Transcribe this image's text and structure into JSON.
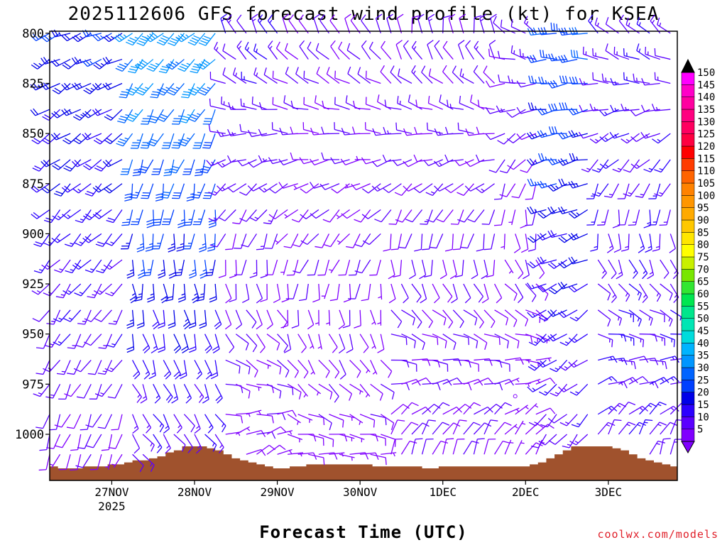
{
  "chart_data": {
    "type": "wind-barb-time-height",
    "title": "2025112606 GFS forecast wind profile (kt) for KSEA",
    "xlabel": "Forecast Time (UTC)",
    "credit": "coolwx.com/models",
    "x_unit": "hours since 2025-11-26 06 UTC",
    "xlim": [
      0,
      182
    ],
    "x_ticks": [
      {
        "hour": 18,
        "label": "27NOV",
        "sublabel": "2025"
      },
      {
        "hour": 42,
        "label": "28NOV",
        "sublabel": ""
      },
      {
        "hour": 66,
        "label": "29NOV",
        "sublabel": ""
      },
      {
        "hour": 90,
        "label": "30NOV",
        "sublabel": ""
      },
      {
        "hour": 114,
        "label": "1DEC",
        "sublabel": ""
      },
      {
        "hour": 138,
        "label": "2DEC",
        "sublabel": ""
      },
      {
        "hour": 162,
        "label": "3DEC",
        "sublabel": ""
      }
    ],
    "y_unit": "hPa",
    "ylim": [
      1023,
      799
    ],
    "y_ticks": [
      800,
      825,
      850,
      875,
      900,
      925,
      950,
      975,
      1000
    ],
    "levels_hPa": [
      1010,
      1000,
      990,
      975,
      963,
      950,
      938,
      925,
      913,
      900,
      888,
      875,
      863,
      850,
      838,
      825,
      813,
      800
    ],
    "time_step_h": 3,
    "time_start_h": 0,
    "wind_segments": [
      {
        "start_h": 0,
        "end_h": 21,
        "dir_top": 245,
        "dir_bottom": 200,
        "spd_top": 24,
        "spd_bottom": 9,
        "colorbar_note": "SW flow, blues aloft"
      },
      {
        "start_h": 24,
        "end_h": 48,
        "dir_top": 225,
        "dir_bottom": 140,
        "spd_top": 38,
        "spd_bottom": 12
      },
      {
        "start_h": 51,
        "end_h": 66,
        "dir_top": 330,
        "dir_bottom": 60,
        "spd_top": 14,
        "spd_bottom": 8
      },
      {
        "start_h": 69,
        "end_h": 96,
        "dir_top": 330,
        "dir_bottom": 90,
        "spd_top": 10,
        "spd_bottom": 8
      },
      {
        "start_h": 99,
        "end_h": 129,
        "dir_top": 350,
        "dir_bottom": 20,
        "spd_top": 11,
        "spd_bottom": 10
      },
      {
        "start_h": 132,
        "end_h": 141,
        "dir_top": 300,
        "dir_bottom": 30,
        "spd_top": 12,
        "spd_bottom": 6
      },
      {
        "start_h": 144,
        "end_h": 156,
        "dir_top": 270,
        "dir_bottom": 220,
        "spd_top": 30,
        "spd_bottom": 12
      },
      {
        "start_h": 159,
        "end_h": 182,
        "dir_top": 310,
        "dir_bottom": 20,
        "spd_top": 14,
        "spd_bottom": 14
      }
    ],
    "calm_point": {
      "hour": 135,
      "level_hPa": 981
    },
    "terrain": {
      "color": "#a0522d",
      "top_hPa": [
        1016,
        1017,
        1017,
        1017,
        1016,
        1016,
        1016,
        1015,
        1015,
        1014,
        1013,
        1013,
        1012,
        1011,
        1009,
        1008,
        1006,
        1006,
        1006,
        1007,
        1008,
        1010,
        1012,
        1013,
        1014,
        1015,
        1016,
        1017,
        1017,
        1016,
        1016,
        1015,
        1015,
        1015,
        1015,
        1015,
        1015,
        1015,
        1015,
        1016,
        1016,
        1016,
        1016,
        1016,
        1016,
        1017,
        1017,
        1016,
        1016,
        1016,
        1016,
        1016,
        1016,
        1016,
        1016,
        1016,
        1016,
        1016,
        1015,
        1014,
        1012,
        1010,
        1008,
        1006,
        1006,
        1006,
        1006,
        1006,
        1007,
        1008,
        1010,
        1012,
        1013,
        1014,
        1015,
        1016
      ]
    },
    "colorbar": {
      "labels": [
        "5",
        "10",
        "15",
        "20",
        "25",
        "30",
        "35",
        "40",
        "45",
        "50",
        "55",
        "60",
        "65",
        "70",
        "75",
        "80",
        "85",
        "90",
        "95",
        "100",
        "105",
        "110",
        "115",
        "120",
        "125",
        "130",
        "135",
        "140",
        "145",
        "150"
      ],
      "colors": [
        "#8000ff",
        "#5a00ff",
        "#2b00ff",
        "#0000e8",
        "#0040ff",
        "#0064ff",
        "#0096ff",
        "#00b4ff",
        "#00dcdc",
        "#00e6b4",
        "#00e68c",
        "#00e650",
        "#32e632",
        "#78e600",
        "#c8f000",
        "#ffff00",
        "#ffe600",
        "#ffc800",
        "#ffaa00",
        "#ff9600",
        "#ff8200",
        "#ff6400",
        "#ff3c00",
        "#ff0000",
        "#ff0040",
        "#ff0060",
        "#ff0080",
        "#ff00a0",
        "#ff00c8",
        "#ff00ff"
      ]
    }
  }
}
